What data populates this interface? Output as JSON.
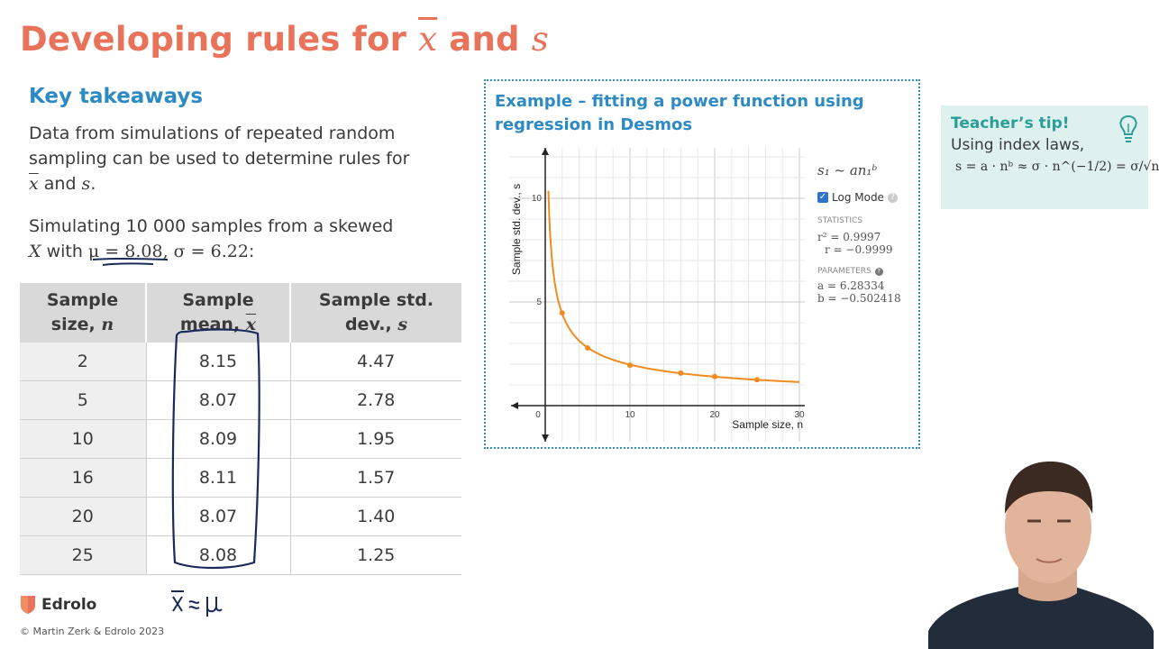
{
  "title": {
    "prefix": "Developing rules for ",
    "xbar": "x",
    "and": " and ",
    "s": "s"
  },
  "key_takeaways": {
    "heading": "Key takeaways",
    "para1_line1": "Data from simulations of repeated random",
    "para1_line2": "sampling can be used to determine rules for",
    "para1_xbar": "x",
    "para1_and": " and ",
    "para1_s": "s",
    "para1_end": ".",
    "para2_line1": "Simulating 10 000 samples from a skewed",
    "para2_X": "X",
    "para2_with": " with ",
    "para2_mu": "μ = 8.08",
    "para2_sigma": ", σ = 6.22",
    "para2_colon": ":"
  },
  "table": {
    "headers": [
      {
        "line1": "Sample",
        "line2": "size, ",
        "sym": "n"
      },
      {
        "line1": "Sample",
        "line2": "mean, ",
        "sym": "x"
      },
      {
        "line1": "Sample std.",
        "line2": "dev., ",
        "sym": "s"
      }
    ],
    "rows": [
      [
        "2",
        "8.15",
        "4.47"
      ],
      [
        "5",
        "8.07",
        "2.78"
      ],
      [
        "10",
        "8.09",
        "1.95"
      ],
      [
        "16",
        "8.11",
        "1.57"
      ],
      [
        "20",
        "8.07",
        "1.40"
      ],
      [
        "25",
        "8.08",
        "1.25"
      ]
    ]
  },
  "example": {
    "title_line1": "Example – fitting a power function using",
    "title_line2": "regression in Desmos"
  },
  "desmos": {
    "formula": "s₁ ~ an₁ᵇ",
    "log_mode_label": "Log Mode",
    "statistics_label": "STATISTICS",
    "r2": "r² = 0.9997",
    "r": "r = −0.9999",
    "parameters_label": "PARAMETERS",
    "a": "a = 6.28334",
    "b": "b = −0.502418"
  },
  "chart_data": {
    "type": "scatter",
    "xlabel": "Sample size, n",
    "ylabel": "Sample std. dev., s",
    "xlim": [
      0,
      30
    ],
    "ylim": [
      0,
      12
    ],
    "x_ticks": [
      "0",
      "10",
      "20",
      "30"
    ],
    "y_ticks": [
      "5",
      "10"
    ],
    "points": [
      {
        "x": 2,
        "y": 4.47
      },
      {
        "x": 5,
        "y": 2.78
      },
      {
        "x": 10,
        "y": 1.95
      },
      {
        "x": 16,
        "y": 1.57
      },
      {
        "x": 20,
        "y": 1.4
      },
      {
        "x": 25,
        "y": 1.25
      }
    ],
    "fit": {
      "a": 6.28334,
      "b": -0.502418
    },
    "curve_color": "#f08c1f",
    "grid": true
  },
  "tip": {
    "heading": "Teacher’s tip!",
    "text": "Using index laws,",
    "formula": "s = a · nᵇ ≈ σ · n^(−1/2) = σ/√n"
  },
  "logo": {
    "name": "Edrolo"
  },
  "copyright": "© Martin Zerk & Edrolo 2023",
  "handwriting": {
    "note": "x̄ ≈ μ"
  },
  "colors": {
    "title": "#e8725a",
    "heading": "#2e8ac2",
    "tip_heading": "#2a9e97",
    "tip_bg": "#dff1ef",
    "curve": "#f08c1f"
  }
}
